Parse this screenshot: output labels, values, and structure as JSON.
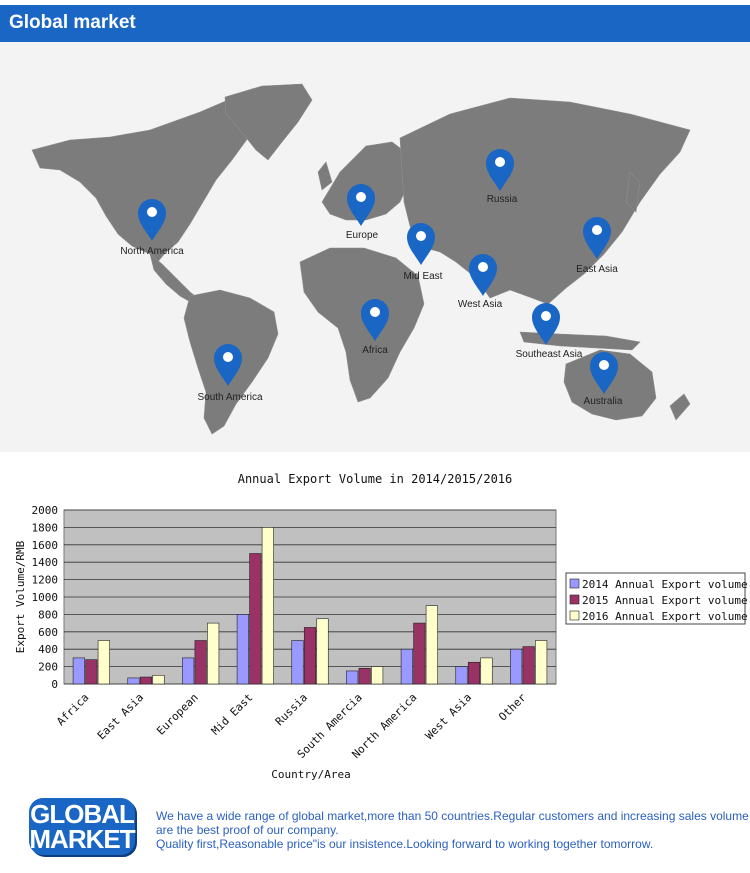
{
  "header": {
    "title": "Global market"
  },
  "map": {
    "labels": [
      "North America",
      "Europe",
      "Russia",
      "Mid East",
      "East Asia",
      "West Asia",
      "Africa",
      "Southeast Asia",
      "South America",
      "Australia"
    ],
    "pin_color": "#1a66c4",
    "land_color": "#7a7a7a"
  },
  "chart_title": "Annual Export Volume in 2014/2015/2016",
  "chart_data": {
    "type": "bar",
    "title": "Annual Export Volume in 2014/2015/2016",
    "xlabel": "Country/Area",
    "ylabel": "Export Volume/RMB",
    "ylim": [
      0,
      2000
    ],
    "yticks": [
      "0",
      "200",
      "400",
      "600",
      "800",
      "1000",
      "1200",
      "1400",
      "1600",
      "1800",
      "2000"
    ],
    "grid": true,
    "legend_position": "right",
    "categories": [
      "Africa",
      "East Asia",
      "European",
      "Mid East",
      "Russia",
      "South Amercia",
      "North America",
      "West Asia",
      "Other"
    ],
    "series": [
      {
        "name": "2014 Annual Export volume",
        "color": "#9999ff",
        "values": [
          300,
          70,
          300,
          800,
          500,
          150,
          400,
          200,
          400
        ]
      },
      {
        "name": "2015 Annual Export volume",
        "color": "#993366",
        "values": [
          280,
          80,
          500,
          1500,
          650,
          180,
          700,
          250,
          430
        ]
      },
      {
        "name": "2016 Annual Export volume",
        "color": "#ffffcc",
        "values": [
          500,
          100,
          700,
          1800,
          750,
          200,
          900,
          300,
          500
        ]
      }
    ]
  },
  "footer": {
    "badge_line1": "GLOBAL",
    "badge_line2": "MARKET",
    "text_line1": "We have a wide range of global market,more than 50 countries.Regular customers and increasing sales volume",
    "text_line2": "are the best proof of our company.",
    "text_line3": "Quality first,Reasonable price\"is our insistence.Looking forward to working together tomorrow."
  }
}
